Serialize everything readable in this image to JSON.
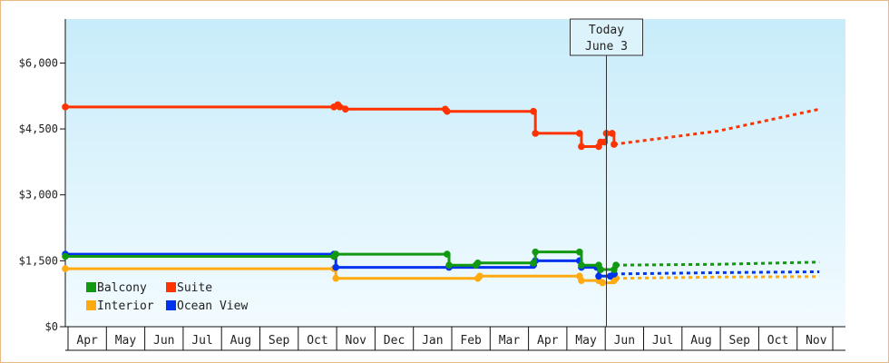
{
  "chart_data": {
    "type": "line",
    "title": "",
    "xlabel": "",
    "ylabel": "",
    "ylim": [
      0,
      7000
    ],
    "y_ticks": [
      "$0",
      "$1,500",
      "$3,000",
      "$4,500",
      "$6,000"
    ],
    "y_tick_values": [
      0,
      1500,
      3000,
      4500,
      6000
    ],
    "x_months": [
      "Apr",
      "May",
      "Jun",
      "Jul",
      "Aug",
      "Sep",
      "Oct",
      "Nov",
      "Dec",
      "Jan",
      "Feb",
      "Mar",
      "Apr",
      "May",
      "Jun",
      "Jul",
      "Aug",
      "Sep",
      "Oct",
      "Nov"
    ],
    "grid": false,
    "legend_position": "bottom-left",
    "today": {
      "line1": "Today",
      "line2": "June 3",
      "month_pos": 14.1
    },
    "series": [
      {
        "name": "Suite",
        "color": "#ff3300",
        "points": [
          [
            0.0,
            5000
          ],
          [
            7.0,
            5000
          ],
          [
            7.1,
            5050
          ],
          [
            7.15,
            5000
          ],
          [
            7.3,
            4950
          ],
          [
            9.9,
            4950
          ],
          [
            9.95,
            4900
          ],
          [
            12.2,
            4900
          ],
          [
            12.25,
            4400
          ],
          [
            13.4,
            4400
          ],
          [
            13.45,
            4100
          ],
          [
            13.9,
            4100
          ],
          [
            13.95,
            4200
          ],
          [
            14.05,
            4200
          ],
          [
            14.1,
            4400
          ],
          [
            14.25,
            4400
          ],
          [
            14.3,
            4150
          ]
        ],
        "forecast": [
          [
            14.3,
            4150
          ],
          [
            17.0,
            4450
          ],
          [
            19.65,
            4950
          ]
        ]
      },
      {
        "name": "Balcony",
        "color": "#119911",
        "points": [
          [
            0.0,
            1600
          ],
          [
            7.0,
            1600
          ],
          [
            7.05,
            1650
          ],
          [
            9.95,
            1650
          ],
          [
            10.0,
            1400
          ],
          [
            10.7,
            1400
          ],
          [
            10.75,
            1450
          ],
          [
            12.2,
            1450
          ],
          [
            12.25,
            1700
          ],
          [
            13.4,
            1700
          ],
          [
            13.45,
            1400
          ],
          [
            13.9,
            1400
          ],
          [
            13.95,
            1300
          ],
          [
            14.3,
            1300
          ],
          [
            14.35,
            1400
          ]
        ],
        "forecast": [
          [
            14.35,
            1400
          ],
          [
            17.0,
            1420
          ],
          [
            19.65,
            1470
          ]
        ]
      },
      {
        "name": "Ocean View",
        "color": "#0033ee",
        "points": [
          [
            0.0,
            1650
          ],
          [
            7.0,
            1650
          ],
          [
            7.05,
            1350
          ],
          [
            9.95,
            1350
          ],
          [
            10.0,
            1350
          ],
          [
            12.2,
            1400
          ],
          [
            12.25,
            1500
          ],
          [
            13.4,
            1500
          ],
          [
            13.45,
            1350
          ],
          [
            13.85,
            1350
          ],
          [
            13.9,
            1150
          ],
          [
            14.2,
            1150
          ],
          [
            14.3,
            1200
          ]
        ],
        "forecast": [
          [
            14.3,
            1200
          ],
          [
            17.0,
            1230
          ],
          [
            19.65,
            1250
          ]
        ]
      },
      {
        "name": "Interior",
        "color": "#ffaa11",
        "points": [
          [
            0.0,
            1320
          ],
          [
            7.0,
            1320
          ],
          [
            7.05,
            1100
          ],
          [
            9.9,
            1100
          ],
          [
            10.75,
            1100
          ],
          [
            10.8,
            1150
          ],
          [
            12.2,
            1150
          ],
          [
            13.4,
            1150
          ],
          [
            13.45,
            1050
          ],
          [
            13.9,
            1050
          ],
          [
            14.0,
            1000
          ],
          [
            14.3,
            1050
          ],
          [
            14.35,
            1100
          ]
        ],
        "forecast": [
          [
            14.35,
            1100
          ],
          [
            17.0,
            1130
          ],
          [
            19.65,
            1140
          ]
        ]
      }
    ],
    "legend_order": [
      "Balcony",
      "Suite",
      "Interior",
      "Ocean View"
    ],
    "colors": {
      "plot_top": "#c8ecfa",
      "plot_bottom": "#f2fbff",
      "frame": "#e8b982"
    }
  }
}
